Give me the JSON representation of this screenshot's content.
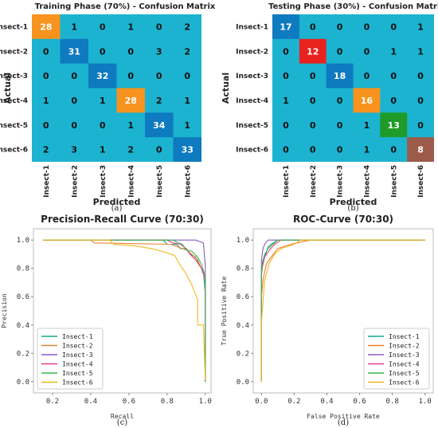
{
  "chart_data": [
    {
      "type": "heatmap",
      "title": "Training Phase (70%) - Confusion Matrix",
      "xlabel": "Predicted",
      "ylabel": "Actual",
      "caption": "(a)",
      "rows": [
        "Insect-1",
        "Insect-2",
        "Insect-3",
        "Insect-4",
        "Insect-5",
        "Insect-6"
      ],
      "cols": [
        "Insect-1",
        "Insect-2",
        "Insect-3",
        "Insect-4",
        "Insect-5",
        "Insect-6"
      ],
      "values": [
        [
          28,
          1,
          0,
          1,
          0,
          2
        ],
        [
          0,
          31,
          0,
          0,
          3,
          2
        ],
        [
          0,
          0,
          32,
          0,
          0,
          0
        ],
        [
          1,
          0,
          1,
          28,
          2,
          1
        ],
        [
          0,
          0,
          0,
          1,
          34,
          1
        ],
        [
          2,
          3,
          1,
          2,
          0,
          33
        ]
      ],
      "colors": {
        "background": "#1BB3D0",
        "diag": [
          "#F7931E",
          "#0E7ABF",
          "#0E7ABF",
          "#F7931E",
          "#0E7ABF",
          "#0E7ABF"
        ]
      }
    },
    {
      "type": "heatmap",
      "title": "Testing Phase (30%) - Confusion Matrix",
      "xlabel": "Predicted",
      "ylabel": "Actual",
      "caption": "(b)",
      "rows": [
        "Insect-1",
        "Insect-2",
        "Insect-3",
        "Insect-4",
        "Insect-5",
        "Insect-6"
      ],
      "cols": [
        "Insect-1",
        "Insect-2",
        "Insect-3",
        "Insect-4",
        "Insect-5",
        "Insect-6"
      ],
      "values": [
        [
          17,
          0,
          0,
          0,
          0,
          1
        ],
        [
          0,
          12,
          0,
          0,
          1,
          1
        ],
        [
          0,
          0,
          18,
          0,
          0,
          0
        ],
        [
          1,
          0,
          0,
          16,
          0,
          0
        ],
        [
          0,
          0,
          0,
          1,
          13,
          0
        ],
        [
          0,
          0,
          0,
          1,
          0,
          8
        ]
      ],
      "colors": {
        "background": "#1BB3D0",
        "diag": [
          "#0E7ABF",
          "#E8231F",
          "#0E7ABF",
          "#F7931E",
          "#1E9B28",
          "#9C5A4B"
        ]
      }
    },
    {
      "type": "line",
      "title": "Precision-Recall Curve (70:30)",
      "xlabel": "Recall",
      "ylabel": "Precision",
      "caption": "(c)",
      "xlim": [
        0.1,
        1.03
      ],
      "ylim": [
        -0.08,
        1.08
      ],
      "xticks": [
        0.2,
        0.4,
        0.6,
        0.8,
        1.0
      ],
      "yticks": [
        0.0,
        0.2,
        0.4,
        0.6,
        0.8,
        1.0
      ],
      "legend_position": "bottom-left",
      "series": [
        {
          "name": "Insect-1",
          "color": "#1AA58B",
          "points": [
            [
              0.15,
              1
            ],
            [
              0.78,
              1
            ],
            [
              0.8,
              0.97
            ],
            [
              0.85,
              0.97
            ],
            [
              0.87,
              0.94
            ],
            [
              0.9,
              0.94
            ],
            [
              0.92,
              0.9
            ],
            [
              0.95,
              0.88
            ],
            [
              0.97,
              0.82
            ],
            [
              0.99,
              0.78
            ],
            [
              1.0,
              0.62
            ],
            [
              1.0,
              0.0
            ]
          ]
        },
        {
          "name": "Insect-2",
          "color": "#E8822A",
          "points": [
            [
              0.15,
              1
            ],
            [
              0.4,
              1
            ],
            [
              0.42,
              0.98
            ],
            [
              0.82,
              0.97
            ],
            [
              0.86,
              0.95
            ],
            [
              0.9,
              0.93
            ],
            [
              0.93,
              0.9
            ],
            [
              0.96,
              0.86
            ],
            [
              0.98,
              0.8
            ],
            [
              1.0,
              0.72
            ],
            [
              1.0,
              0.0
            ]
          ]
        },
        {
          "name": "Insect-3",
          "color": "#8A5CC8",
          "points": [
            [
              0.15,
              1
            ],
            [
              0.95,
              1
            ],
            [
              0.97,
              0.99
            ],
            [
              0.99,
              0.98
            ],
            [
              1.0,
              0.82
            ],
            [
              1.0,
              0.0
            ]
          ]
        },
        {
          "name": "Insect-4",
          "color": "#E23D8E",
          "points": [
            [
              0.15,
              1
            ],
            [
              0.8,
              1
            ],
            [
              0.83,
              0.98
            ],
            [
              0.87,
              0.97
            ],
            [
              0.9,
              0.94
            ],
            [
              0.92,
              0.9
            ],
            [
              0.95,
              0.86
            ],
            [
              0.98,
              0.8
            ],
            [
              1.0,
              0.72
            ],
            [
              1.0,
              0.0
            ]
          ]
        },
        {
          "name": "Insect-5",
          "color": "#3CB84A",
          "points": [
            [
              0.15,
              1
            ],
            [
              0.83,
              1
            ],
            [
              0.86,
              0.98
            ],
            [
              0.88,
              0.97
            ],
            [
              0.9,
              0.93
            ],
            [
              0.93,
              0.92
            ],
            [
              0.96,
              0.88
            ],
            [
              0.98,
              0.83
            ],
            [
              1.0,
              0.74
            ],
            [
              1.0,
              0.0
            ]
          ]
        },
        {
          "name": "Insect-6",
          "color": "#F2B820",
          "points": [
            [
              0.15,
              1
            ],
            [
              0.5,
              1
            ],
            [
              0.52,
              0.97
            ],
            [
              0.62,
              0.96
            ],
            [
              0.72,
              0.94
            ],
            [
              0.8,
              0.91
            ],
            [
              0.84,
              0.89
            ],
            [
              0.87,
              0.82
            ],
            [
              0.9,
              0.76
            ],
            [
              0.93,
              0.68
            ],
            [
              0.96,
              0.58
            ],
            [
              0.96,
              0.4
            ],
            [
              0.99,
              0.4
            ],
            [
              1.0,
              0.01
            ]
          ]
        }
      ]
    },
    {
      "type": "line",
      "title": "ROC-Curve (70:30)",
      "xlabel": "False Positive Rate",
      "ylabel": "True Positive Rate",
      "caption": "(d)",
      "xlim": [
        -0.05,
        1.05
      ],
      "ylim": [
        -0.08,
        1.08
      ],
      "xticks": [
        0.0,
        0.2,
        0.4,
        0.6,
        0.8,
        1.0
      ],
      "yticks": [
        0.0,
        0.2,
        0.4,
        0.6,
        0.8,
        1.0
      ],
      "legend_position": "bottom-right",
      "series": [
        {
          "name": "Insect-1",
          "color": "#1AA58B",
          "points": [
            [
              0,
              0
            ],
            [
              0,
              0.75
            ],
            [
              0.01,
              0.85
            ],
            [
              0.02,
              0.88
            ],
            [
              0.04,
              0.95
            ],
            [
              0.06,
              0.97
            ],
            [
              0.1,
              1
            ],
            [
              1,
              1
            ]
          ]
        },
        {
          "name": "Insect-2",
          "color": "#E8822A",
          "points": [
            [
              0,
              0
            ],
            [
              0,
              0.6
            ],
            [
              0.01,
              0.72
            ],
            [
              0.03,
              0.83
            ],
            [
              0.06,
              0.88
            ],
            [
              0.1,
              0.94
            ],
            [
              0.18,
              0.97
            ],
            [
              0.3,
              1
            ],
            [
              1,
              1
            ]
          ]
        },
        {
          "name": "Insect-3",
          "color": "#8A5CC8",
          "points": [
            [
              0,
              0
            ],
            [
              0,
              0.86
            ],
            [
              0.01,
              0.94
            ],
            [
              0.02,
              0.97
            ],
            [
              0.04,
              1
            ],
            [
              1,
              1
            ]
          ]
        },
        {
          "name": "Insect-4",
          "color": "#E23D8E",
          "points": [
            [
              0,
              0
            ],
            [
              0,
              0.78
            ],
            [
              0.02,
              0.88
            ],
            [
              0.05,
              0.93
            ],
            [
              0.08,
              0.97
            ],
            [
              0.12,
              1
            ],
            [
              1,
              1
            ]
          ]
        },
        {
          "name": "Insect-5",
          "color": "#3CB84A",
          "points": [
            [
              0,
              0
            ],
            [
              0,
              0.82
            ],
            [
              0.02,
              0.9
            ],
            [
              0.04,
              0.94
            ],
            [
              0.07,
              0.97
            ],
            [
              0.1,
              1
            ],
            [
              1,
              1
            ]
          ]
        },
        {
          "name": "Insect-6",
          "color": "#F2B820",
          "points": [
            [
              0,
              0
            ],
            [
              0,
              0.42
            ],
            [
              0.02,
              0.72
            ],
            [
              0.05,
              0.84
            ],
            [
              0.08,
              0.9
            ],
            [
              0.12,
              0.94
            ],
            [
              0.2,
              0.97
            ],
            [
              0.24,
              1
            ],
            [
              1,
              1
            ]
          ]
        }
      ]
    }
  ]
}
